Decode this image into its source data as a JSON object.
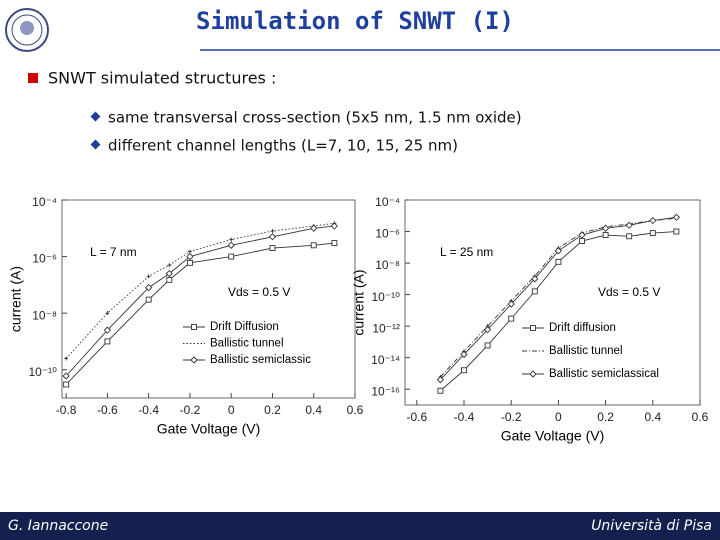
{
  "slide": {
    "title": "Simulation of SNWT (I)",
    "bullet": "SNWT simulated structures :",
    "sub_bullets": [
      "same transversal cross-section (5x5 nm, 1.5 nm oxide)",
      "different channel lengths (L=7, 10, 15, 25 nm)"
    ],
    "footer_left": "G. Iannaccone",
    "footer_right": "Università di Pisa"
  },
  "chart_data": [
    {
      "type": "line",
      "x_label": "Gate Voltage (V)",
      "y_label": "current (A)",
      "y_scale": "log",
      "annotations": [
        "L = 7 nm",
        "Vds = 0.5 V"
      ],
      "xlim": [
        -0.82,
        0.6
      ],
      "xticks": [
        -0.8,
        -0.6,
        -0.4,
        -0.2,
        0,
        0.2,
        0.4,
        0.6
      ],
      "ylim": [
        1e-11,
        0.0001
      ],
      "yticks": [
        {
          "value": 0.0001,
          "label": "10⁻⁴"
        },
        {
          "value": 1e-06,
          "label": "10⁻⁶"
        },
        {
          "value": 1e-08,
          "label": "10⁻⁸"
        },
        {
          "value": 1e-10,
          "label": "10⁻¹⁰"
        }
      ],
      "x": [
        -0.8,
        -0.6,
        -0.4,
        -0.3,
        -0.2,
        0,
        0.2,
        0.4,
        0.5
      ],
      "series": [
        {
          "name": "Drift Diffusion",
          "color": "#333333",
          "marker": "square",
          "line_style": "solid",
          "values": [
            3e-11,
            1e-09,
            3e-08,
            1.5e-07,
            6e-07,
            1e-06,
            2e-06,
            2.5e-06,
            3e-06
          ]
        },
        {
          "name": "Ballistic tunnel",
          "color": "#333333",
          "marker": "none",
          "line_style": "dotted",
          "values": [
            2.5e-10,
            1e-08,
            2e-07,
            5e-07,
            1.5e-06,
            4e-06,
            8e-06,
            1.2e-05,
            1.5e-05
          ]
        },
        {
          "name": "Ballistic semiclassic",
          "color": "#333333",
          "marker": "diamond",
          "line_style": "solid",
          "values": [
            6e-11,
            2.5e-09,
            8e-08,
            2.5e-07,
            1e-06,
            2.5e-06,
            5e-06,
            1e-05,
            1.2e-05
          ]
        }
      ]
    },
    {
      "type": "line",
      "x_label": "Gate Voltage (V)",
      "y_label": "current (A)",
      "y_scale": "log",
      "annotations": [
        "L = 25 nm",
        "Vds = 0.5 V"
      ],
      "xlim": [
        -0.65,
        0.6
      ],
      "xticks": [
        -0.6,
        -0.4,
        -0.2,
        0,
        0.2,
        0.4,
        0.6
      ],
      "ylim": [
        1e-17,
        0.0001
      ],
      "yticks": [
        {
          "value": 0.0001,
          "label": "10⁻⁴"
        },
        {
          "value": 1e-06,
          "label": "10⁻⁶"
        },
        {
          "value": 1e-08,
          "label": "10⁻⁸"
        },
        {
          "value": 1e-10,
          "label": "10⁻¹⁰"
        },
        {
          "value": 1e-12,
          "label": "10⁻¹²"
        },
        {
          "value": 1e-14,
          "label": "10⁻¹⁴"
        },
        {
          "value": 1e-16,
          "label": "10⁻¹⁶"
        }
      ],
      "x": [
        -0.5,
        -0.4,
        -0.3,
        -0.2,
        -0.1,
        0,
        0.1,
        0.2,
        0.3,
        0.4,
        0.5
      ],
      "series": [
        {
          "name": "Drift diffusion",
          "color": "#333333",
          "marker": "square",
          "line_style": "solid",
          "values": [
            8e-17,
            1.6e-15,
            6e-14,
            3e-12,
            1.6e-10,
            1.2e-08,
            2.5e-07,
            6e-07,
            5e-07,
            8e-07,
            1e-06
          ]
        },
        {
          "name": "Ballistic tunnel",
          "color": "#333333",
          "marker": "none",
          "line_style": "dashdot",
          "values": [
            6e-16,
            2.5e-14,
            1e-12,
            4e-11,
            1.5e-09,
            9e-08,
            8e-07,
            2e-06,
            3e-06,
            5e-06,
            7e-06
          ]
        },
        {
          "name": "Ballistic semiclassical",
          "color": "#333333",
          "marker": "diamond",
          "line_style": "solid",
          "values": [
            4e-16,
            1.6e-14,
            6e-13,
            2.5e-11,
            1e-09,
            6e-08,
            6e-07,
            1.6e-06,
            2.5e-06,
            5e-06,
            8e-06
          ]
        }
      ]
    }
  ]
}
